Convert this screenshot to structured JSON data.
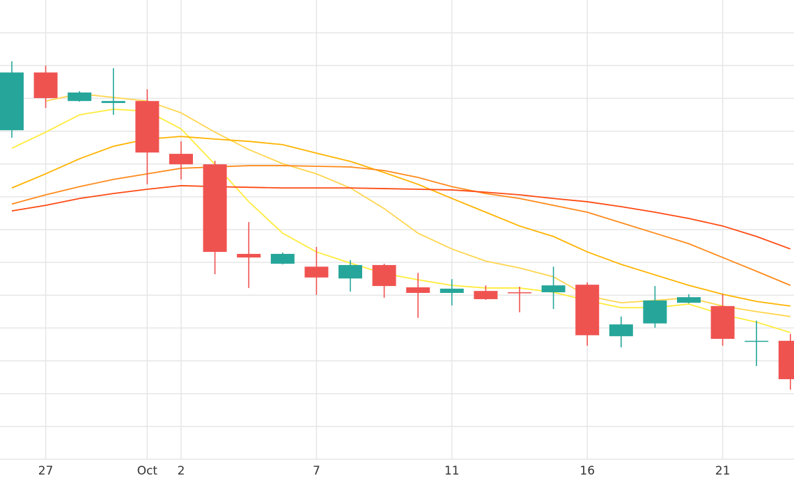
{
  "chart_data": {
    "type": "candlestick",
    "categories": [
      null,
      "27",
      null,
      null,
      "Oct",
      "2",
      null,
      null,
      null,
      "7",
      null,
      null,
      null,
      "11",
      null,
      null,
      null,
      "16",
      null,
      null,
      null,
      "21",
      null,
      null
    ],
    "open": [
      10.03,
      11.79,
      10.92,
      10.86,
      10.92,
      9.31,
      8.99,
      6.26,
      5.96,
      5.87,
      5.51,
      5.92,
      5.24,
      5.07,
      5.13,
      5.09,
      5.09,
      5.32,
      3.75,
      4.14,
      4.77,
      4.67,
      3.58,
      3.61
    ],
    "high": [
      12.13,
      12.0,
      11.22,
      11.92,
      11.28,
      9.69,
      9.1,
      7.23,
      6.3,
      6.47,
      6.07,
      5.96,
      5.68,
      5.49,
      5.3,
      5.26,
      5.87,
      5.39,
      4.35,
      5.28,
      5.03,
      5.03,
      4.22,
      3.82
    ],
    "low": [
      9.8,
      10.71,
      10.9,
      10.5,
      8.38,
      8.53,
      5.64,
      5.22,
      5.94,
      5.01,
      5.11,
      4.92,
      4.31,
      4.69,
      4.86,
      4.48,
      4.58,
      3.46,
      3.41,
      4.01,
      4.75,
      3.46,
      2.84,
      2.12
    ],
    "close": [
      11.79,
      11.01,
      11.18,
      10.92,
      9.35,
      8.99,
      6.32,
      6.15,
      6.26,
      5.54,
      5.92,
      5.28,
      5.07,
      5.2,
      4.88,
      5.07,
      5.3,
      3.78,
      4.11,
      4.84,
      4.94,
      3.67,
      3.61,
      2.44
    ],
    "up_color": "#26a69a",
    "down_color": "#ef5350",
    "series": [
      {
        "color": "#ffeb3b",
        "values": [
          9.48,
          9.97,
          10.5,
          10.67,
          10.61,
          10.07,
          8.99,
          7.85,
          6.89,
          6.32,
          5.98,
          5.66,
          5.47,
          5.3,
          5.22,
          5.22,
          5.09,
          4.84,
          4.62,
          4.62,
          4.73,
          4.41,
          4.18,
          3.86
        ]
      },
      {
        "color": "#ffd54f",
        "values": [
          null,
          10.92,
          11.14,
          11.03,
          10.92,
          10.56,
          9.97,
          9.44,
          9.01,
          8.7,
          8.27,
          7.64,
          6.89,
          6.41,
          6.04,
          5.83,
          5.56,
          4.98,
          4.77,
          4.84,
          4.92,
          4.67,
          4.5,
          4.35
        ]
      },
      {
        "color": "#ffb300",
        "values": [
          8.27,
          8.7,
          9.16,
          9.54,
          9.76,
          9.84,
          9.76,
          9.69,
          9.59,
          9.33,
          9.08,
          8.74,
          8.38,
          7.95,
          7.53,
          7.11,
          6.79,
          6.32,
          5.94,
          5.62,
          5.3,
          5.03,
          4.81,
          4.67
        ]
      },
      {
        "color": "#ff8a1c",
        "values": [
          7.78,
          8.06,
          8.31,
          8.53,
          8.7,
          8.87,
          8.91,
          8.95,
          8.95,
          8.93,
          8.91,
          8.8,
          8.59,
          8.31,
          8.1,
          7.95,
          7.74,
          7.53,
          7.21,
          6.89,
          6.57,
          6.15,
          5.73,
          5.3
        ]
      },
      {
        "color": "#ff4a12",
        "values": [
          7.57,
          7.74,
          7.95,
          8.1,
          8.23,
          8.34,
          8.31,
          8.29,
          8.27,
          8.27,
          8.27,
          8.25,
          8.23,
          8.21,
          8.14,
          8.06,
          7.95,
          7.85,
          7.7,
          7.53,
          7.34,
          7.11,
          6.79,
          6.41
        ]
      }
    ],
    "ylim": [
      0,
      14
    ],
    "ygrid": [
      0,
      1,
      2,
      3,
      4,
      5,
      6,
      7,
      8,
      9,
      10,
      11,
      12,
      13
    ],
    "grid": true
  }
}
